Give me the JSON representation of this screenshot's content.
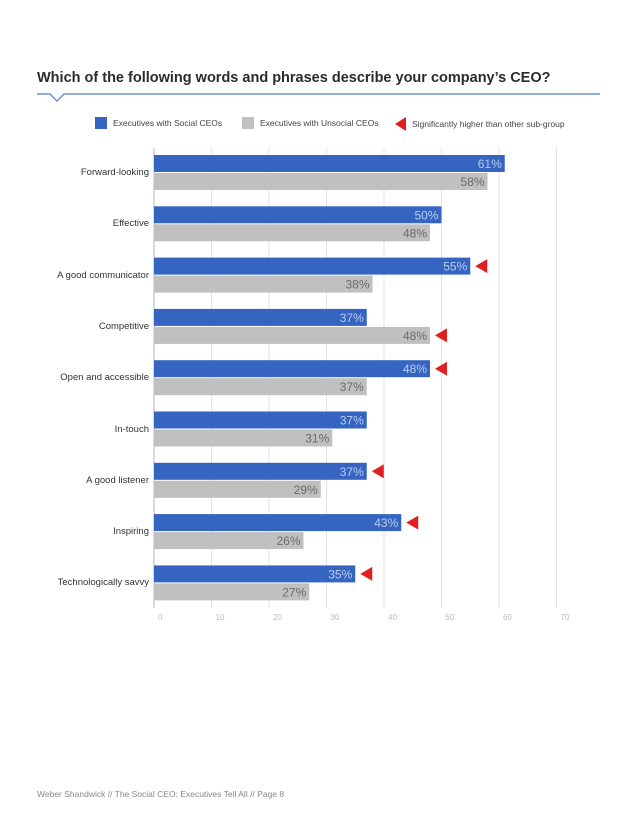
{
  "page": {
    "title": "Which of the following words and phrases describe your company’s CEO?",
    "footer": "Weber Shandwick // The Social CEO: Executives Tell All // Page 8"
  },
  "legend": {
    "social": "Executives with Social CEOs",
    "unsocial": "Executives with Unsocial CEOs",
    "significant": "Significantly higher than other sub-group"
  },
  "colors": {
    "social": "#3565c0",
    "unsocial": "#c0c0c0",
    "significant": "#e02020",
    "accent_rule": "#4a7cc4"
  },
  "chart_data": {
    "type": "bar",
    "orientation": "horizontal",
    "title": "Which of the following words and phrases describe your company’s CEO?",
    "xlim": [
      0,
      70
    ],
    "xticks": [
      0,
      10,
      20,
      30,
      40,
      50,
      60,
      70
    ],
    "grid": true,
    "categories": [
      "Forward-looking",
      "Effective",
      "A good communicator",
      "Competitive",
      "Open and accessible",
      "In-touch",
      "A good listener",
      "Inspiring",
      "Technologically savvy"
    ],
    "series": [
      {
        "name": "Executives with Social CEOs",
        "values": [
          61,
          50,
          55,
          37,
          48,
          37,
          37,
          43,
          35
        ],
        "labels": [
          "61%",
          "50%",
          "55%",
          "37%",
          "48%",
          "37%",
          "37%",
          "43%",
          "35%"
        ],
        "significant": [
          false,
          false,
          true,
          false,
          true,
          false,
          true,
          true,
          true
        ]
      },
      {
        "name": "Executives with Unsocial CEOs",
        "values": [
          58,
          48,
          38,
          48,
          37,
          31,
          29,
          26,
          27
        ],
        "labels": [
          "58%",
          "48%",
          "38%",
          "48%",
          "37%",
          "31%",
          "29%",
          "26%",
          "27%"
        ],
        "significant": [
          false,
          false,
          false,
          true,
          false,
          false,
          false,
          false,
          false
        ]
      }
    ]
  }
}
